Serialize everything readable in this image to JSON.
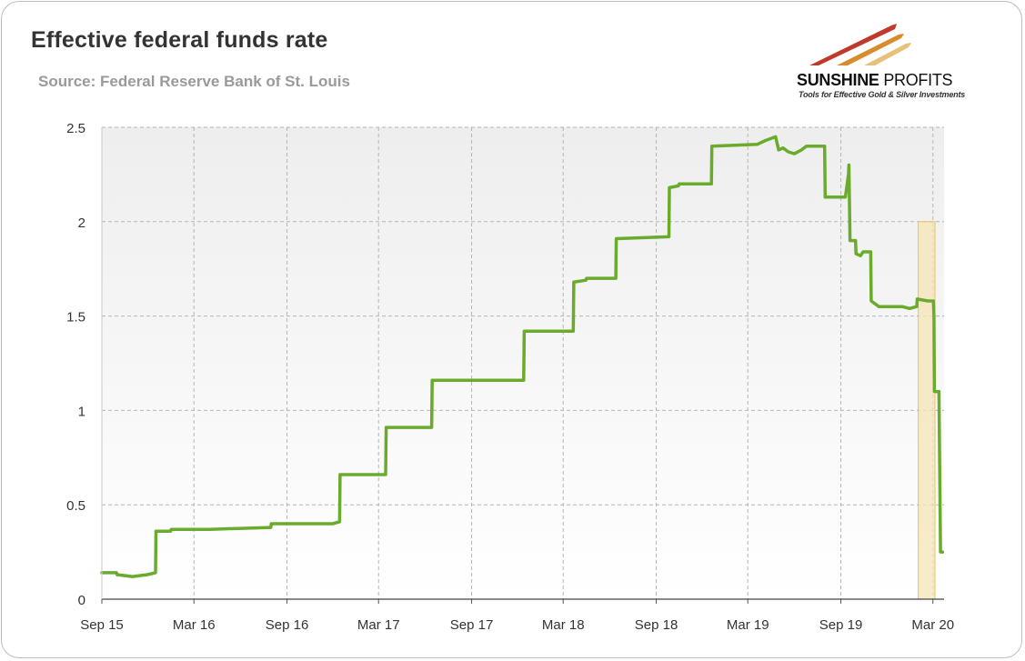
{
  "title": "Effective federal funds rate",
  "subtitle": "Source: Federal Reserve Bank of St. Louis",
  "logo": {
    "name_bold": "SUNSHINE",
    "name_light": " PROFITS",
    "tagline": "Tools for Effective Gold & Silver Investments",
    "colors": [
      "#c0392b",
      "#d98c2b",
      "#e8c07a"
    ]
  },
  "chart_data": {
    "type": "line",
    "title": "Effective federal funds rate",
    "subtitle": "Source: Federal Reserve Bank of St. Louis",
    "xlabel": "",
    "ylabel": "",
    "xlim": [
      "2015-09-01",
      "2020-03-23"
    ],
    "ylim": [
      0,
      2.5
    ],
    "yticks": [
      0,
      0.5,
      1,
      1.5,
      2,
      2.5
    ],
    "ytick_labels": [
      "0",
      "0.5",
      "1",
      "1.5",
      "2",
      "2.5"
    ],
    "xticks": [
      "2015-09-01",
      "2016-03-01",
      "2016-09-01",
      "2017-03-01",
      "2017-09-01",
      "2018-03-01",
      "2018-09-01",
      "2019-03-01",
      "2019-09-01",
      "2020-03-01"
    ],
    "xtick_labels": [
      "Sep 15",
      "Mar 16",
      "Sep 16",
      "Mar 17",
      "Sep 17",
      "Mar 18",
      "Sep 18",
      "Mar 19",
      "Sep 19",
      "Mar 20"
    ],
    "grid": true,
    "line_color": "#6aab2e",
    "highlight": {
      "x": [
        "2020-02-01",
        "2020-03-05"
      ],
      "y": [
        0,
        2
      ],
      "color": "#f6e4b5",
      "edge": "#e8c25c"
    },
    "series": [
      {
        "values": [
          [
            "2015-09-01",
            0.14
          ],
          [
            "2015-09-30",
            0.14
          ],
          [
            "2015-10-01",
            0.13
          ],
          [
            "2015-10-31",
            0.12
          ],
          [
            "2015-11-01",
            0.12
          ],
          [
            "2015-11-30",
            0.13
          ],
          [
            "2015-12-16",
            0.14
          ],
          [
            "2015-12-17",
            0.36
          ],
          [
            "2016-01-15",
            0.36
          ],
          [
            "2016-01-16",
            0.37
          ],
          [
            "2016-03-31",
            0.37
          ],
          [
            "2016-04-01",
            0.37
          ],
          [
            "2016-07-31",
            0.38
          ],
          [
            "2016-08-01",
            0.4
          ],
          [
            "2016-11-30",
            0.4
          ],
          [
            "2016-12-14",
            0.41
          ],
          [
            "2016-12-15",
            0.66
          ],
          [
            "2017-03-15",
            0.66
          ],
          [
            "2017-03-16",
            0.91
          ],
          [
            "2017-06-14",
            0.91
          ],
          [
            "2017-06-15",
            1.16
          ],
          [
            "2017-12-13",
            1.16
          ],
          [
            "2017-12-14",
            1.42
          ],
          [
            "2018-03-21",
            1.42
          ],
          [
            "2018-03-22",
            1.68
          ],
          [
            "2018-04-15",
            1.69
          ],
          [
            "2018-04-16",
            1.7
          ],
          [
            "2018-06-13",
            1.7
          ],
          [
            "2018-06-14",
            1.91
          ],
          [
            "2018-09-26",
            1.92
          ],
          [
            "2018-09-27",
            2.18
          ],
          [
            "2018-10-15",
            2.19
          ],
          [
            "2018-10-16",
            2.2
          ],
          [
            "2018-12-19",
            2.2
          ],
          [
            "2018-12-20",
            2.4
          ],
          [
            "2019-03-20",
            2.41
          ],
          [
            "2019-04-05",
            2.43
          ],
          [
            "2019-04-15",
            2.44
          ],
          [
            "2019-04-25",
            2.45
          ],
          [
            "2019-05-01",
            2.38
          ],
          [
            "2019-05-10",
            2.39
          ],
          [
            "2019-05-20",
            2.37
          ],
          [
            "2019-06-01",
            2.36
          ],
          [
            "2019-06-15",
            2.38
          ],
          [
            "2019-06-25",
            2.4
          ],
          [
            "2019-07-31",
            2.4
          ],
          [
            "2019-08-01",
            2.13
          ],
          [
            "2019-09-10",
            2.13
          ],
          [
            "2019-09-16",
            2.25
          ],
          [
            "2019-09-17",
            2.3
          ],
          [
            "2019-09-18",
            2.1
          ],
          [
            "2019-09-19",
            1.9
          ],
          [
            "2019-09-30",
            1.9
          ],
          [
            "2019-10-01",
            1.83
          ],
          [
            "2019-10-10",
            1.82
          ],
          [
            "2019-10-15",
            1.84
          ],
          [
            "2019-10-30",
            1.84
          ],
          [
            "2019-10-31",
            1.58
          ],
          [
            "2019-11-15",
            1.55
          ],
          [
            "2019-12-31",
            1.55
          ],
          [
            "2020-01-15",
            1.54
          ],
          [
            "2020-01-29",
            1.55
          ],
          [
            "2020-01-30",
            1.59
          ],
          [
            "2020-02-20",
            1.58
          ],
          [
            "2020-03-02",
            1.58
          ],
          [
            "2020-03-03",
            1.5
          ],
          [
            "2020-03-04",
            1.1
          ],
          [
            "2020-03-13",
            1.1
          ],
          [
            "2020-03-16",
            0.25
          ],
          [
            "2020-03-20",
            0.25
          ]
        ]
      }
    ]
  }
}
